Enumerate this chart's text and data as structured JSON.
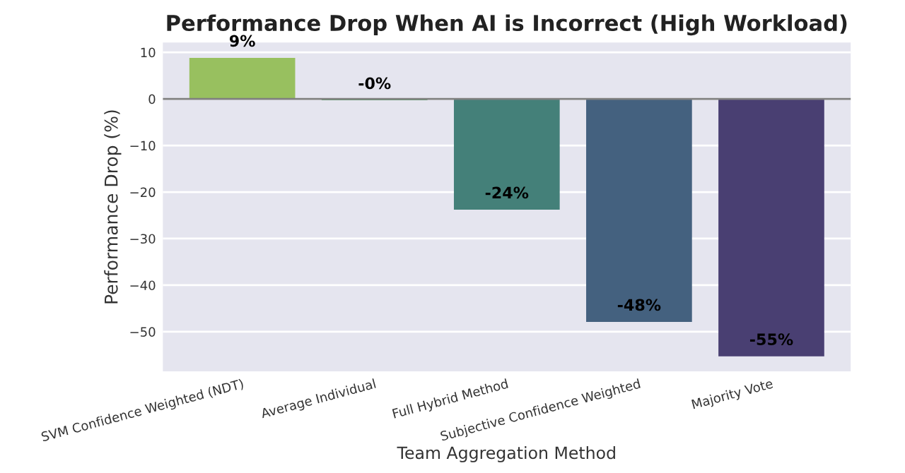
{
  "chart_data": {
    "type": "bar",
    "title": "Performance Drop When AI is Incorrect (High Workload)",
    "xlabel": "Team Aggregation Method",
    "ylabel": "Performance Drop (%)",
    "categories": [
      "SVM Confidence Weighted (NDT)",
      "Average Individual",
      "Full Hybrid Method",
      "Subjective Confidence Weighted",
      "Majority Vote"
    ],
    "values": [
      8.8,
      -0.3,
      -23.8,
      -47.9,
      -55.3
    ],
    "colors": [
      "#98c05f",
      "#5fab6e",
      "#448079",
      "#44617f",
      "#493f72"
    ],
    "value_labels": [
      "9%",
      "-0%",
      "-24%",
      "-48%",
      "-55%"
    ],
    "ylim": [
      -58.5,
      12.1
    ],
    "yticks": [
      {
        "value": -50,
        "label": "−50"
      },
      {
        "value": -40,
        "label": "−40"
      },
      {
        "value": -30,
        "label": "−30"
      },
      {
        "value": -20,
        "label": "−20"
      },
      {
        "value": -10,
        "label": "−10"
      },
      0,
      10
    ],
    "ref_lines": [
      {
        "axis": "y",
        "value": 0,
        "label": null,
        "color": "#808080"
      }
    ],
    "grid": "y"
  }
}
